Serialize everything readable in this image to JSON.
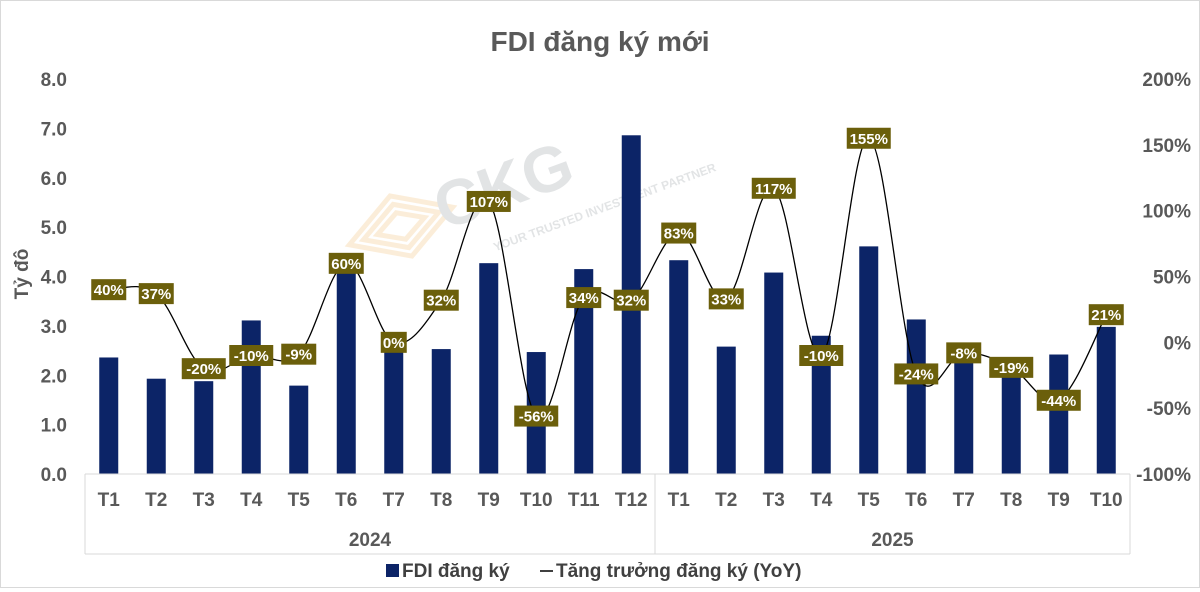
{
  "chart_data": {
    "type": "bar+line",
    "title": "FDI đăng ký mới",
    "ylabel": "Tỷ đô",
    "ylim": [
      0,
      8
    ],
    "y2lim": [
      -1.0,
      2.0
    ],
    "yticks": [
      "0.0",
      "1.0",
      "2.0",
      "3.0",
      "4.0",
      "5.0",
      "6.0",
      "7.0",
      "8.0"
    ],
    "y2ticks": [
      "-100%",
      "-50%",
      "0%",
      "50%",
      "100%",
      "150%",
      "200%"
    ],
    "groups": [
      {
        "name": "2024",
        "categories": [
          "T1",
          "T2",
          "T3",
          "T4",
          "T5",
          "T6",
          "T7",
          "T8",
          "T9",
          "T10",
          "T11",
          "T12"
        ]
      },
      {
        "name": "2025",
        "categories": [
          "T1",
          "T2",
          "T3",
          "T4",
          "T5",
          "T6",
          "T7",
          "T8",
          "T9",
          "T10"
        ]
      }
    ],
    "series": [
      {
        "name": "FDI đăng ký",
        "type": "bar",
        "axis": "left",
        "color": "#0c2467",
        "values": [
          2.36,
          1.93,
          1.88,
          3.11,
          1.79,
          4.12,
          2.81,
          2.53,
          4.27,
          2.47,
          4.15,
          6.86,
          4.33,
          2.58,
          4.08,
          2.8,
          4.61,
          3.13,
          2.61,
          2.05,
          2.42,
          2.98
        ]
      },
      {
        "name": "Tăng trưởng đăng ký (YoY)",
        "type": "line",
        "axis": "right",
        "color": "#000000",
        "values": [
          0.4,
          0.37,
          -0.2,
          -0.1,
          -0.09,
          0.6,
          0.0,
          0.32,
          1.07,
          -0.56,
          0.34,
          0.32,
          0.83,
          0.33,
          1.17,
          -0.1,
          1.55,
          -0.24,
          -0.08,
          -0.19,
          -0.44,
          0.21
        ],
        "labels": [
          "40%",
          "37%",
          "-20%",
          "-10%",
          "-9%",
          "60%",
          "0%",
          "32%",
          "107%",
          "-56%",
          "34%",
          "32%",
          "83%",
          "33%",
          "117%",
          "-10%",
          "155%",
          "-24%",
          "-8%",
          "-19%",
          "-44%",
          "21%"
        ],
        "label_color": "#6b5f0b"
      }
    ],
    "legend": "bottom",
    "grid": false
  },
  "watermark": {
    "text": "CKG",
    "tagline": "YOUR TRUSTED INVESTMENT PARTNER"
  }
}
